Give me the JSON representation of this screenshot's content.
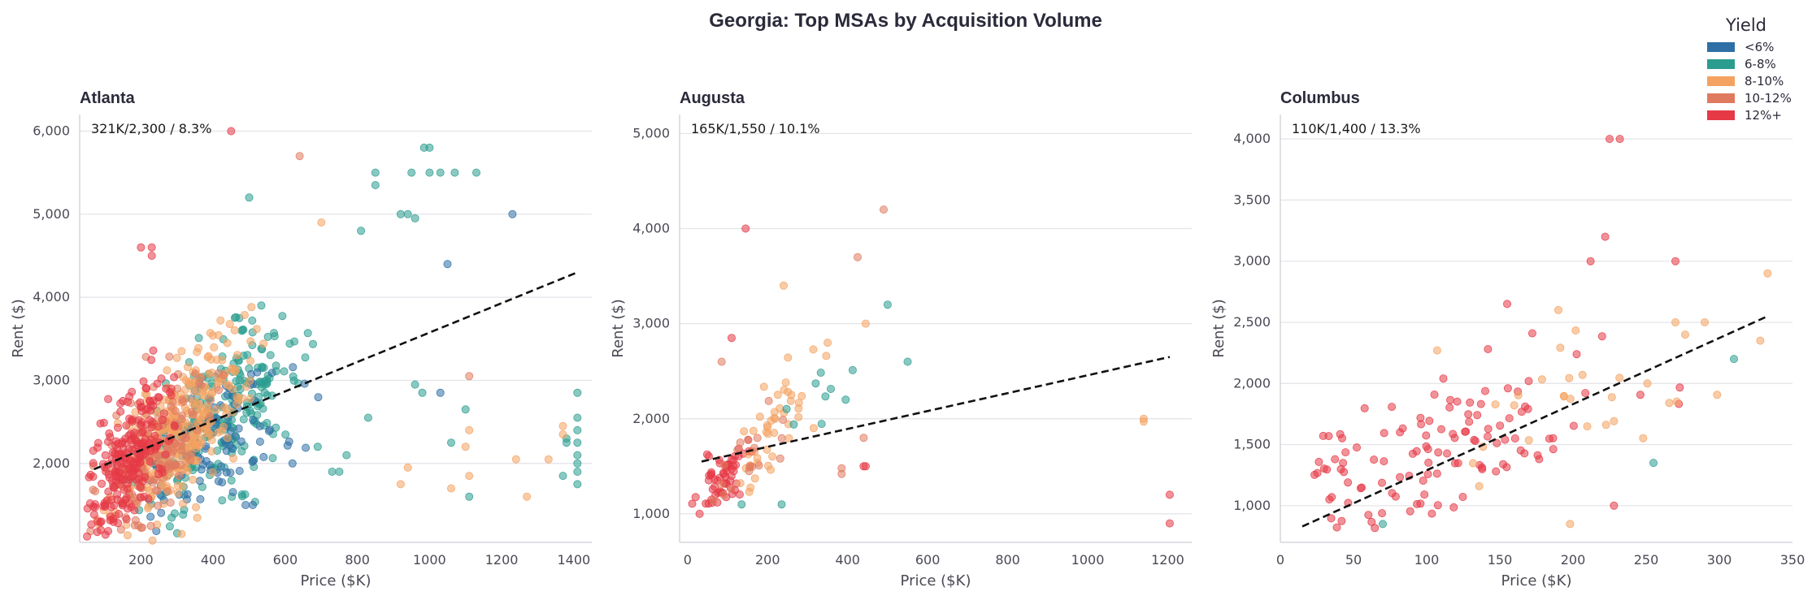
{
  "title": "Georgia: Top MSAs by Acquisition Volume",
  "legend": {
    "title": "Yield",
    "items": [
      {
        "label": "<6%",
        "color": "#2e6fa5"
      },
      {
        "label": "6-8%",
        "color": "#2a9d8f"
      },
      {
        "label": "8-10%",
        "color": "#f4a261"
      },
      {
        "label": "10-12%",
        "color": "#e07a5f"
      },
      {
        "label": "12%+",
        "color": "#e63946"
      }
    ]
  },
  "chart_data": [
    {
      "type": "scatter",
      "title": "Atlanta",
      "annotation": "321K/2,300 / 8.3%",
      "xlabel": "Price ($K)",
      "ylabel": "Rent ($)",
      "xlim": [
        30,
        1450
      ],
      "ylim": [
        1050,
        6200
      ],
      "xticks": [
        200,
        400,
        600,
        800,
        1000,
        1200,
        1400
      ],
      "xtick_labels": [
        "200",
        "400",
        "600",
        "800",
        "1000",
        "1200",
        "1400"
      ],
      "yticks": [
        2000,
        3000,
        4000,
        5000,
        6000
      ],
      "ytick_labels": [
        "2,000",
        "3,000",
        "4,000",
        "5,000",
        "6,000"
      ],
      "trend": {
        "x0": 70,
        "y0": 1930,
        "x1": 1410,
        "y1": 4300
      },
      "clusters": [
        {
          "group": 1,
          "n": 260,
          "cx": 420,
          "cy": 2550,
          "sx": 110,
          "sy": 420,
          "slope": 3.2
        },
        {
          "group": 0,
          "n": 90,
          "cx": 430,
          "cy": 2300,
          "sx": 120,
          "sy": 350,
          "slope": 2.5
        },
        {
          "group": 2,
          "n": 320,
          "cx": 310,
          "cy": 2400,
          "sx": 90,
          "sy": 420,
          "slope": 4.0
        },
        {
          "group": 3,
          "n": 160,
          "cx": 240,
          "cy": 2150,
          "sx": 80,
          "sy": 380,
          "slope": 4.0
        },
        {
          "group": 4,
          "n": 230,
          "cx": 170,
          "cy": 2050,
          "sx": 60,
          "sy": 380,
          "slope": 5.0
        }
      ],
      "points": [
        {
          "group": 4,
          "x": 450,
          "y": 6000
        },
        {
          "group": 3,
          "x": 640,
          "y": 5700
        },
        {
          "group": 1,
          "x": 985,
          "y": 5800
        },
        {
          "group": 1,
          "x": 1000,
          "y": 5800
        },
        {
          "group": 1,
          "x": 850,
          "y": 5500
        },
        {
          "group": 1,
          "x": 950,
          "y": 5500
        },
        {
          "group": 1,
          "x": 1000,
          "y": 5500
        },
        {
          "group": 1,
          "x": 1030,
          "y": 5500
        },
        {
          "group": 1,
          "x": 1070,
          "y": 5500
        },
        {
          "group": 1,
          "x": 1130,
          "y": 5500
        },
        {
          "group": 1,
          "x": 850,
          "y": 5350
        },
        {
          "group": 1,
          "x": 500,
          "y": 5200
        },
        {
          "group": 0,
          "x": 1230,
          "y": 5000
        },
        {
          "group": 1,
          "x": 920,
          "y": 5000
        },
        {
          "group": 1,
          "x": 940,
          "y": 5000
        },
        {
          "group": 1,
          "x": 960,
          "y": 4950
        },
        {
          "group": 1,
          "x": 810,
          "y": 4800
        },
        {
          "group": 4,
          "x": 200,
          "y": 4600
        },
        {
          "group": 4,
          "x": 230,
          "y": 4600
        },
        {
          "group": 4,
          "x": 230,
          "y": 4500
        },
        {
          "group": 0,
          "x": 1050,
          "y": 4400
        },
        {
          "group": 2,
          "x": 700,
          "y": 4900
        },
        {
          "group": 1,
          "x": 1410,
          "y": 2850
        },
        {
          "group": 1,
          "x": 1410,
          "y": 2550
        },
        {
          "group": 1,
          "x": 1410,
          "y": 2400
        },
        {
          "group": 1,
          "x": 1410,
          "y": 2250
        },
        {
          "group": 1,
          "x": 1410,
          "y": 2100
        },
        {
          "group": 1,
          "x": 1410,
          "y": 2000
        },
        {
          "group": 1,
          "x": 1410,
          "y": 1900
        },
        {
          "group": 1,
          "x": 1410,
          "y": 1750
        },
        {
          "group": 1,
          "x": 1380,
          "y": 2300
        },
        {
          "group": 1,
          "x": 1380,
          "y": 2250
        },
        {
          "group": 2,
          "x": 1370,
          "y": 2450
        },
        {
          "group": 2,
          "x": 1370,
          "y": 2350
        },
        {
          "group": 1,
          "x": 1370,
          "y": 1850
        },
        {
          "group": 2,
          "x": 1330,
          "y": 2050
        },
        {
          "group": 2,
          "x": 1270,
          "y": 1600
        },
        {
          "group": 2,
          "x": 1240,
          "y": 2050
        },
        {
          "group": 1,
          "x": 1100,
          "y": 2650
        },
        {
          "group": 3,
          "x": 1110,
          "y": 3050
        },
        {
          "group": 2,
          "x": 1110,
          "y": 2400
        },
        {
          "group": 2,
          "x": 1100,
          "y": 2200
        },
        {
          "group": 2,
          "x": 1110,
          "y": 1850
        },
        {
          "group": 1,
          "x": 1110,
          "y": 1600
        },
        {
          "group": 2,
          "x": 1060,
          "y": 1700
        },
        {
          "group": 1,
          "x": 1060,
          "y": 2250
        },
        {
          "group": 0,
          "x": 1030,
          "y": 2850
        },
        {
          "group": 1,
          "x": 960,
          "y": 2950
        },
        {
          "group": 1,
          "x": 980,
          "y": 2850
        },
        {
          "group": 2,
          "x": 940,
          "y": 1950
        },
        {
          "group": 2,
          "x": 920,
          "y": 1750
        },
        {
          "group": 1,
          "x": 830,
          "y": 2550
        },
        {
          "group": 1,
          "x": 770,
          "y": 2100
        },
        {
          "group": 1,
          "x": 730,
          "y": 1900
        },
        {
          "group": 1,
          "x": 750,
          "y": 1900
        },
        {
          "group": 0,
          "x": 620,
          "y": 2000
        },
        {
          "group": 1,
          "x": 690,
          "y": 2200
        },
        {
          "group": 0,
          "x": 490,
          "y": 1500
        },
        {
          "group": 0,
          "x": 510,
          "y": 1500
        },
        {
          "group": 4,
          "x": 90,
          "y": 1300
        },
        {
          "group": 4,
          "x": 80,
          "y": 1300
        }
      ]
    },
    {
      "type": "scatter",
      "title": "Augusta",
      "annotation": "165K/1,550 / 10.1%",
      "xlabel": "Price ($K)",
      "ylabel": "Rent ($)",
      "xlim": [
        -20,
        1260
      ],
      "ylim": [
        700,
        5200
      ],
      "xticks": [
        0,
        200,
        400,
        600,
        800,
        1000,
        1200
      ],
      "xtick_labels": [
        "0",
        "200",
        "400",
        "600",
        "800",
        "1000",
        "1200"
      ],
      "yticks": [
        1000,
        2000,
        3000,
        4000,
        5000
      ],
      "ytick_labels": [
        "1,000",
        "2,000",
        "3,000",
        "4,000",
        "5,000"
      ],
      "trend": {
        "x0": 35,
        "y0": 1550,
        "x1": 1205,
        "y1": 2650
      },
      "clusters": [
        {
          "group": 4,
          "n": 60,
          "cx": 95,
          "cy": 1400,
          "sx": 35,
          "sy": 170,
          "slope": 3.0
        },
        {
          "group": 2,
          "n": 45,
          "cx": 215,
          "cy": 1850,
          "sx": 55,
          "sy": 230,
          "slope": 5.0
        },
        {
          "group": 3,
          "n": 18,
          "cx": 160,
          "cy": 1600,
          "sx": 50,
          "sy": 200,
          "slope": 4.0
        },
        {
          "group": 1,
          "n": 8,
          "cx": 340,
          "cy": 2200,
          "sx": 40,
          "sy": 150,
          "slope": 3.0
        }
      ],
      "points": [
        {
          "group": 3,
          "x": 490,
          "y": 4200
        },
        {
          "group": 4,
          "x": 145,
          "y": 4000
        },
        {
          "group": 3,
          "x": 425,
          "y": 3700
        },
        {
          "group": 2,
          "x": 240,
          "y": 3400
        },
        {
          "group": 1,
          "x": 500,
          "y": 3200
        },
        {
          "group": 2,
          "x": 445,
          "y": 3000
        },
        {
          "group": 4,
          "x": 110,
          "y": 2850
        },
        {
          "group": 2,
          "x": 350,
          "y": 2800
        },
        {
          "group": 1,
          "x": 550,
          "y": 2600
        },
        {
          "group": 3,
          "x": 85,
          "y": 2600
        },
        {
          "group": 1,
          "x": 395,
          "y": 2200
        },
        {
          "group": 3,
          "x": 440,
          "y": 1800
        },
        {
          "group": 2,
          "x": 1140,
          "y": 2000
        },
        {
          "group": 2,
          "x": 1140,
          "y": 1970
        },
        {
          "group": 4,
          "x": 440,
          "y": 1500
        },
        {
          "group": 4,
          "x": 445,
          "y": 1500
        },
        {
          "group": 3,
          "x": 385,
          "y": 1480
        },
        {
          "group": 3,
          "x": 385,
          "y": 1420
        },
        {
          "group": 1,
          "x": 235,
          "y": 1100
        },
        {
          "group": 1,
          "x": 135,
          "y": 1100
        },
        {
          "group": 4,
          "x": 1205,
          "y": 1200
        },
        {
          "group": 4,
          "x": 1205,
          "y": 900
        },
        {
          "group": 4,
          "x": 30,
          "y": 1000
        }
      ]
    },
    {
      "type": "scatter",
      "title": "Columbus",
      "annotation": "110K/1,400 / 13.3%",
      "xlabel": "Price ($K)",
      "ylabel": "Rent ($)",
      "xlim": [
        0,
        350
      ],
      "ylim": [
        700,
        4200
      ],
      "xticks": [
        0,
        50,
        100,
        150,
        200,
        250,
        300,
        350
      ],
      "xtick_labels": [
        "0",
        "50",
        "100",
        "150",
        "200",
        "250",
        "300",
        "350"
      ],
      "yticks": [
        1000,
        1500,
        2000,
        2500,
        3000,
        3500,
        4000
      ],
      "ytick_labels": [
        "1,000",
        "1,500",
        "2,000",
        "2,500",
        "3,000",
        "3,500",
        "4,000"
      ],
      "trend": {
        "x0": 15,
        "y0": 830,
        "x1": 333,
        "y1": 2550
      },
      "clusters": [
        {
          "group": 4,
          "n": 120,
          "cx": 110,
          "cy": 1450,
          "sx": 55,
          "sy": 260,
          "slope": 4.5
        },
        {
          "group": 2,
          "n": 28,
          "cx": 200,
          "cy": 1850,
          "sx": 55,
          "sy": 280,
          "slope": 4.0
        }
      ],
      "points": [
        {
          "group": 4,
          "x": 225,
          "y": 4000
        },
        {
          "group": 4,
          "x": 232,
          "y": 4000
        },
        {
          "group": 4,
          "x": 222,
          "y": 3200
        },
        {
          "group": 4,
          "x": 270,
          "y": 3000
        },
        {
          "group": 4,
          "x": 212,
          "y": 3000
        },
        {
          "group": 2,
          "x": 333,
          "y": 2900
        },
        {
          "group": 4,
          "x": 155,
          "y": 2650
        },
        {
          "group": 2,
          "x": 190,
          "y": 2600
        },
        {
          "group": 2,
          "x": 270,
          "y": 2500
        },
        {
          "group": 2,
          "x": 290,
          "y": 2500
        },
        {
          "group": 2,
          "x": 328,
          "y": 2350
        },
        {
          "group": 1,
          "x": 310,
          "y": 2200
        },
        {
          "group": 1,
          "x": 255,
          "y": 1350
        },
        {
          "group": 4,
          "x": 228,
          "y": 1000
        },
        {
          "group": 2,
          "x": 198,
          "y": 850
        },
        {
          "group": 1,
          "x": 70,
          "y": 850
        }
      ]
    }
  ]
}
